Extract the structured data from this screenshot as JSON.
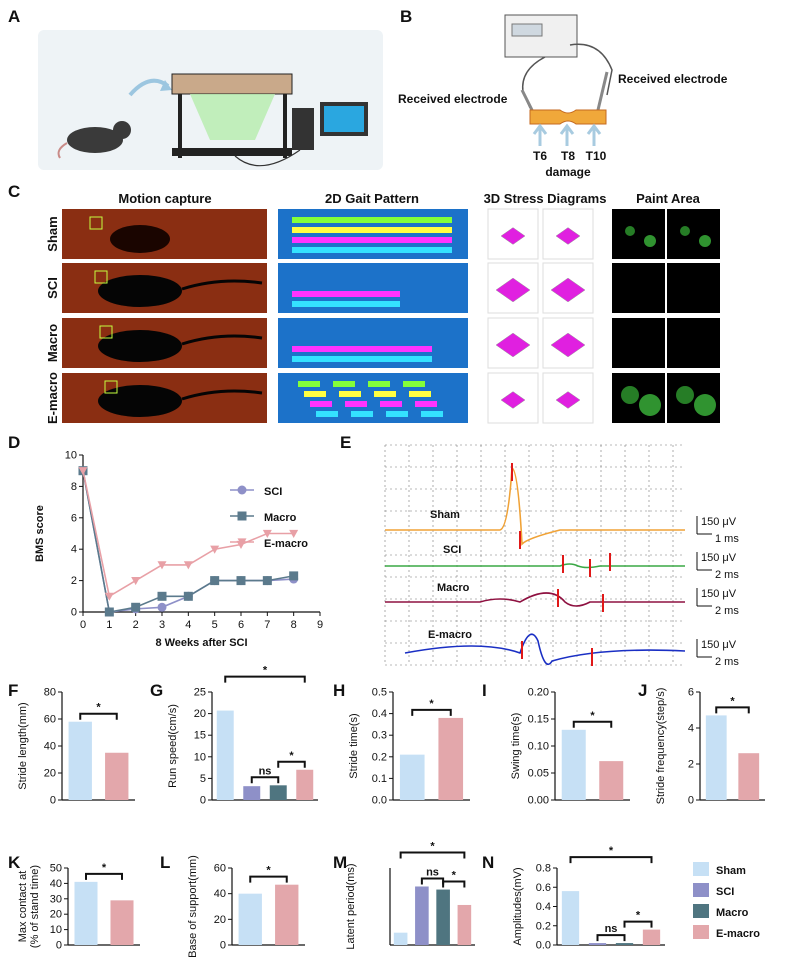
{
  "panel_labels": [
    "A",
    "B",
    "C",
    "D",
    "E",
    "F",
    "G",
    "H",
    "I",
    "J",
    "K",
    "L",
    "M",
    "N"
  ],
  "panel_b": {
    "left_label": "Received electrode",
    "right_label": "Received electrode",
    "vertebrae": [
      "T6",
      "T8",
      "T10"
    ],
    "damage_label": "damage"
  },
  "panel_c": {
    "columns": [
      "Motion capture",
      "2D Gait Pattern",
      "3D Stress Diagrams",
      "Paint Area"
    ],
    "rows": [
      "Sham",
      "SCI",
      "Macro",
      "E-macro"
    ]
  },
  "panel_e": {
    "traces": [
      {
        "name": "Sham",
        "color": "#f0a236",
        "scale_voltage": "150 μV",
        "scale_time": "1 ms"
      },
      {
        "name": "SCI",
        "color": "#3aa845",
        "scale_voltage": "150 μV",
        "scale_time": "2 ms"
      },
      {
        "name": "Macro",
        "color": "#8e1040",
        "scale_voltage": "150 μV",
        "scale_time": "2 ms"
      },
      {
        "name": "E-macro",
        "color": "#1a2fc4",
        "scale_voltage": "150 μV",
        "scale_time": "2 ms"
      }
    ]
  },
  "legend": [
    {
      "name": "Sham",
      "color": "#c6e0f5"
    },
    {
      "name": "SCI",
      "color": "#8e90c8"
    },
    {
      "name": "Macro",
      "color": "#4f7580"
    },
    {
      "name": "E-macro",
      "color": "#e3a7ab"
    }
  ],
  "chart_data": [
    {
      "type": "line",
      "xlabel": "8 Weeks after SCI",
      "ylabel": "BMS score",
      "x": [
        0,
        1,
        2,
        3,
        4,
        5,
        6,
        7,
        8
      ],
      "xlim": [
        0,
        9
      ],
      "xticks": [
        0,
        1,
        2,
        3,
        4,
        5,
        6,
        7,
        8,
        9
      ],
      "ylim": [
        0,
        10
      ],
      "yticks": [
        0,
        2,
        4,
        6,
        8,
        10
      ],
      "legend_position": "upper right",
      "series": [
        {
          "name": "SCI",
          "color": "#8e90c8",
          "marker": "circle",
          "values": [
            9,
            0,
            0.2,
            0.3,
            1,
            2,
            2,
            2,
            2.1
          ]
        },
        {
          "name": "Macro",
          "color": "#5b7a8c",
          "marker": "square",
          "values": [
            9,
            0,
            0.3,
            1,
            1,
            2,
            2,
            2,
            2.3
          ]
        },
        {
          "name": "E-macro",
          "color": "#e8a0a6",
          "marker": "triangle-down",
          "values": [
            9,
            1,
            2,
            3,
            3,
            4,
            4.3,
            5,
            5
          ]
        }
      ]
    },
    {
      "type": "bar",
      "ylabel": [
        "Stride length(mm)"
      ],
      "values": [
        58,
        35
      ],
      "colors": [
        "#c6e0f5",
        "#e3a7ab"
      ],
      "ylim": [
        0,
        80
      ],
      "yticks": [
        0,
        20,
        40,
        60,
        80
      ],
      "comparisons": [
        {
          "bars": [
            0,
            1
          ],
          "label": "*"
        }
      ]
    },
    {
      "type": "bar",
      "ylabel": [
        "Run speed(cm/s)"
      ],
      "values": [
        20.7,
        3.2,
        3.4,
        7
      ],
      "colors": [
        "#c6e0f5",
        "#8e90c8",
        "#4f7580",
        "#e3a7ab"
      ],
      "ylim": [
        0,
        25
      ],
      "yticks": [
        0,
        5,
        10,
        15,
        20,
        25
      ],
      "comparisons": [
        {
          "bars": [
            0,
            3
          ],
          "label": "*"
        },
        {
          "bars": [
            1,
            2
          ],
          "label": "ns"
        },
        {
          "bars": [
            2,
            3
          ],
          "label": "*"
        }
      ]
    },
    {
      "type": "bar",
      "ylabel": [
        "Stride time(s)"
      ],
      "values": [
        0.21,
        0.38
      ],
      "colors": [
        "#c6e0f5",
        "#e3a7ab"
      ],
      "ylim": [
        0,
        0.5
      ],
      "yticks": [
        {
          "value": 0,
          "label": "0.0"
        },
        0.1,
        0.2,
        0.3,
        0.4,
        0.5
      ],
      "comparisons": [
        {
          "bars": [
            0,
            1
          ],
          "label": "*"
        }
      ]
    },
    {
      "type": "bar",
      "ylabel": [
        "Swing time(s)"
      ],
      "values": [
        0.13,
        0.072
      ],
      "colors": [
        "#c6e0f5",
        "#e3a7ab"
      ],
      "ylim": [
        0,
        0.2
      ],
      "yticks": [
        {
          "value": 0,
          "label": "0.00"
        },
        0.05,
        {
          "value": 0.1,
          "label": "0.10"
        },
        0.15,
        {
          "value": 0.2,
          "label": "0.20"
        }
      ],
      "comparisons": [
        {
          "bars": [
            0,
            1
          ],
          "label": "*"
        }
      ]
    },
    {
      "type": "bar",
      "ylabel": [
        "Stride frequency(step/s)"
      ],
      "values": [
        4.7,
        2.6
      ],
      "colors": [
        "#c6e0f5",
        "#e3a7ab"
      ],
      "ylim": [
        0,
        6
      ],
      "yticks": [
        0,
        2,
        4,
        6
      ],
      "comparisons": [
        {
          "bars": [
            0,
            1
          ],
          "label": "*"
        }
      ]
    },
    {
      "type": "bar",
      "ylabel": [
        "Max contact at",
        "(% of stand time)"
      ],
      "values": [
        41,
        29
      ],
      "colors": [
        "#c6e0f5",
        "#e3a7ab"
      ],
      "ylim": [
        0,
        50
      ],
      "yticks": [
        0,
        10,
        20,
        30,
        40,
        50
      ],
      "comparisons": [
        {
          "bars": [
            0,
            1
          ],
          "label": "*"
        }
      ]
    },
    {
      "type": "bar",
      "ylabel": [
        "Base of support(mm)"
      ],
      "values": [
        40,
        47
      ],
      "colors": [
        "#c6e0f5",
        "#e3a7ab"
      ],
      "ylim": [
        0,
        60
      ],
      "yticks": [
        0,
        20,
        40,
        60
      ],
      "comparisons": [
        {
          "bars": [
            0,
            1
          ],
          "label": "*"
        }
      ]
    },
    {
      "type": "bar",
      "ylabel": [
        "Latent period(ms)"
      ],
      "values": [
        4,
        19,
        18,
        13
      ],
      "colors": [
        "#c6e0f5",
        "#8e90c8",
        "#4f7580",
        "#e3a7ab"
      ],
      "ylim": [
        0,
        25
      ],
      "comparisons": [
        {
          "bars": [
            0,
            3
          ],
          "label": "*"
        },
        {
          "bars": [
            1,
            2
          ],
          "label": "ns"
        },
        {
          "bars": [
            2,
            3
          ],
          "label": "*"
        }
      ]
    },
    {
      "type": "bar",
      "ylabel": [
        "Amplitudes(mV)"
      ],
      "values": [
        0.56,
        0.02,
        0.02,
        0.16
      ],
      "colors": [
        "#c6e0f5",
        "#8e90c8",
        "#4f7580",
        "#e3a7ab"
      ],
      "ylim": [
        0,
        0.8
      ],
      "yticks": [
        {
          "value": 0,
          "label": "0.0"
        },
        0.2,
        0.4,
        0.6,
        0.8
      ],
      "comparisons": [
        {
          "bars": [
            0,
            3
          ],
          "label": "*"
        },
        {
          "bars": [
            1,
            2
          ],
          "label": "ns"
        },
        {
          "bars": [
            2,
            3
          ],
          "label": "*"
        }
      ]
    }
  ]
}
